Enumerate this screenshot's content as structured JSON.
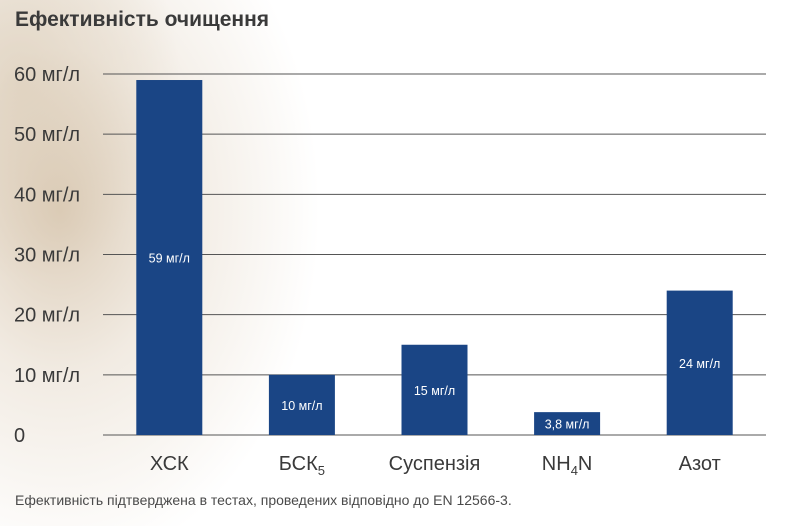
{
  "chart_data": {
    "type": "bar",
    "title": "Ефективність очищення",
    "categories": [
      "ХСК",
      "БСК",
      "Суспензія",
      "NH",
      "Азот"
    ],
    "category_subscripts": [
      "",
      "5",
      "",
      "4",
      ""
    ],
    "category_suffix": [
      "",
      "",
      "",
      "N",
      ""
    ],
    "values": [
      59,
      10,
      15,
      3.8,
      24
    ],
    "value_labels": [
      "59 мг/л",
      "10 мг/л",
      "15 мг/л",
      "3,8 мг/л",
      "24 мг/л"
    ],
    "y_ticks": [
      {
        "value": 0,
        "label": "0"
      },
      {
        "value": 10,
        "label": "10 мг/л"
      },
      {
        "value": 20,
        "label": "20 мг/л"
      },
      {
        "value": 30,
        "label": "30 мг/л"
      },
      {
        "value": 40,
        "label": "40 мг/л"
      },
      {
        "value": 50,
        "label": "50 мг/л"
      },
      {
        "value": 60,
        "label": "60 мг/л"
      }
    ],
    "ylim": [
      0,
      60
    ],
    "grid": true,
    "bar_color": "#1a4585",
    "grid_color": "#555555"
  },
  "footnote": "Ефективність підтверджена в тестах, проведених відповідно до EN 12566-3."
}
